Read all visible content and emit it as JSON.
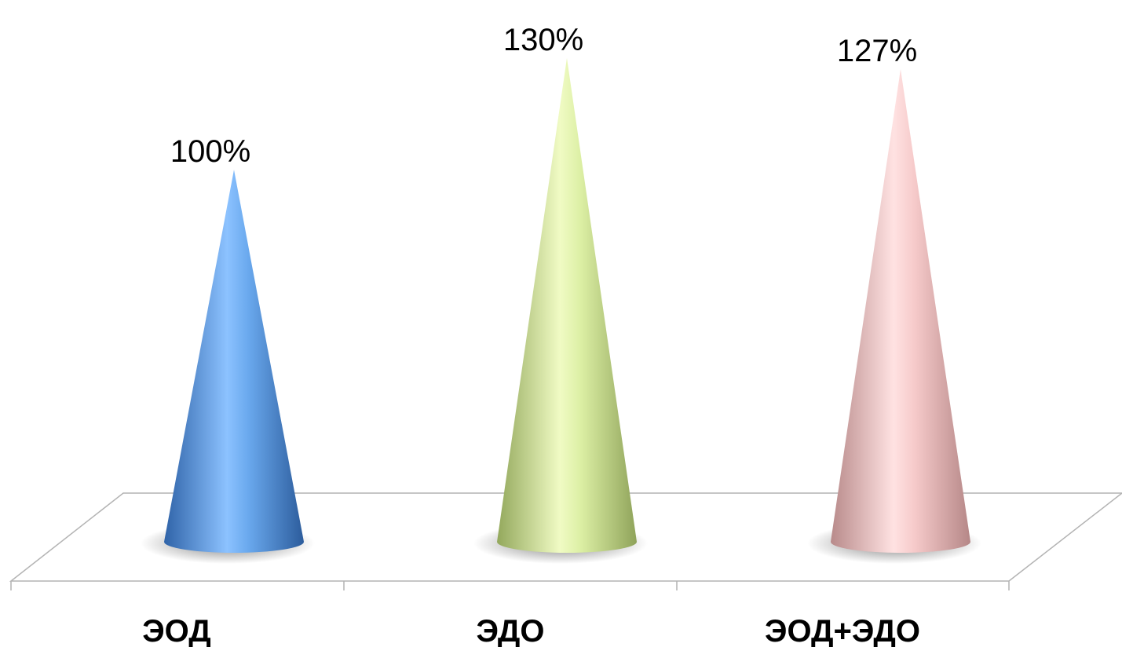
{
  "chart_data": {
    "type": "bar",
    "shape": "cone-3d",
    "categories": [
      "ЭОД",
      "ЭДО",
      "ЭОД+ЭДО"
    ],
    "values": [
      100,
      130,
      127
    ],
    "value_labels": [
      "100%",
      "130%",
      "127%"
    ],
    "title": "",
    "xlabel": "",
    "ylabel": "",
    "ylim": [
      0,
      134
    ],
    "grid": false,
    "legend": "none",
    "colors": [
      "#6aa9ee",
      "#d9ec9f",
      "#f4c8c8"
    ]
  }
}
